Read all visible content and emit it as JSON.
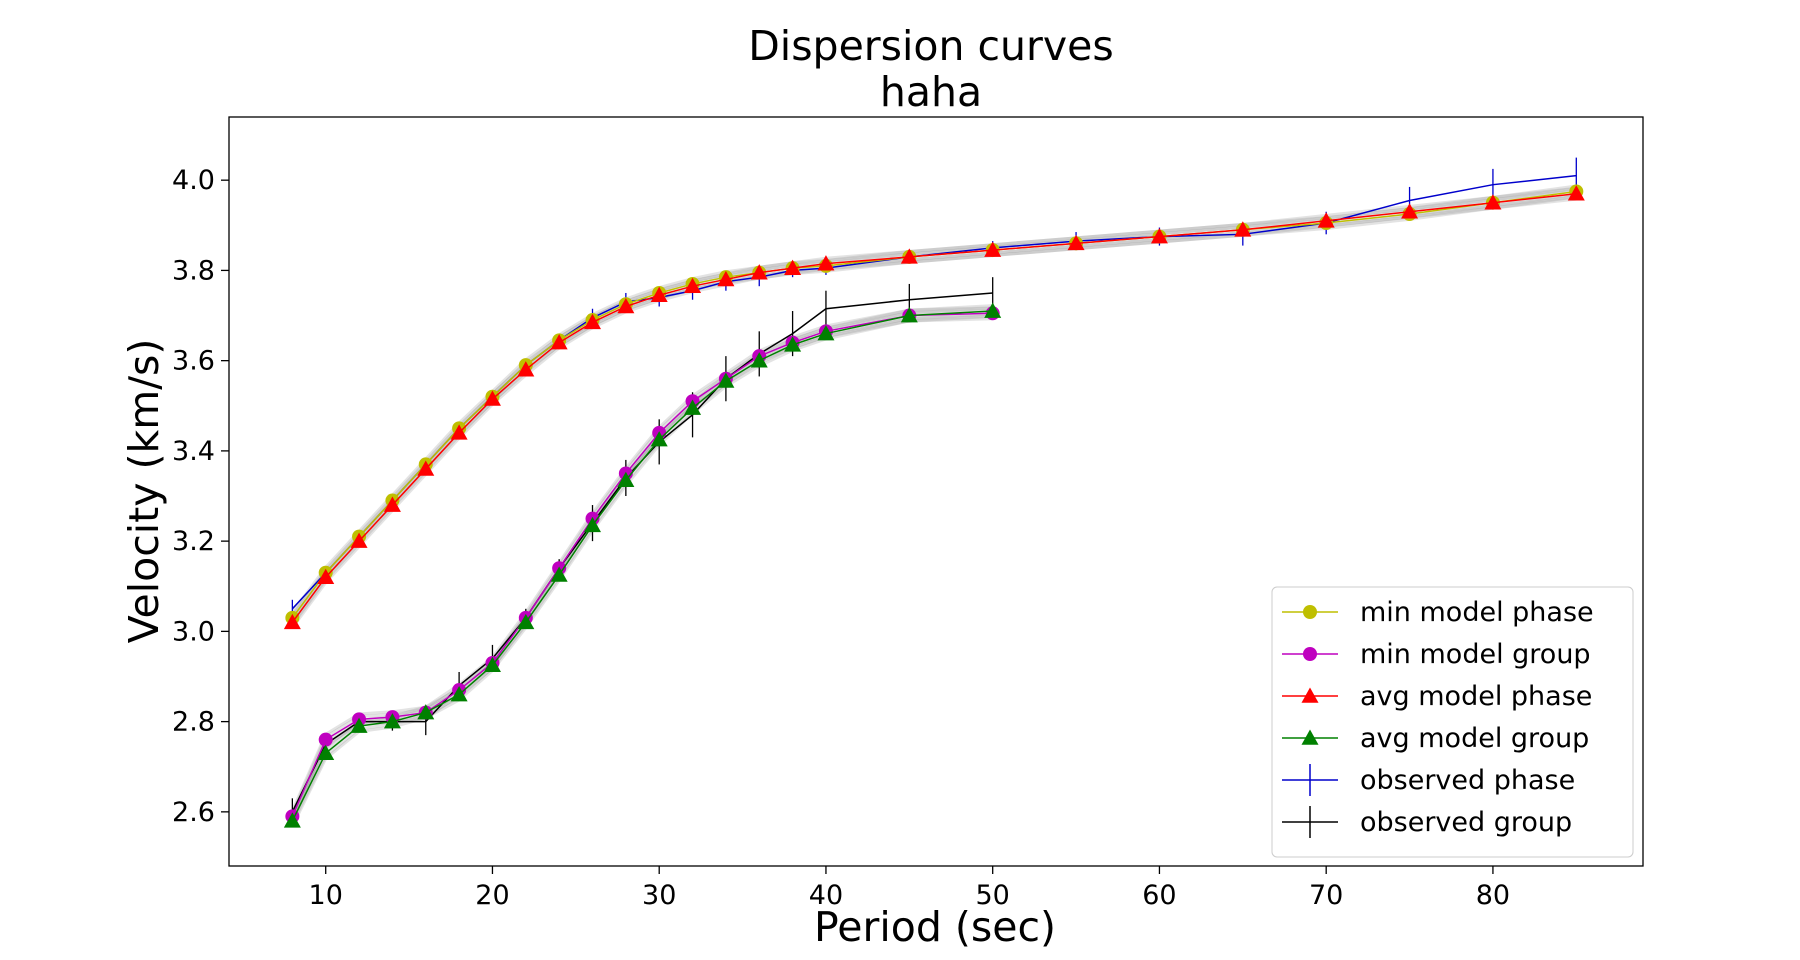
{
  "chart_data": {
    "type": "line",
    "title": "Dispersion curves",
    "subtitle": "haha",
    "xlabel": "Period (sec)",
    "ylabel": "Velocity (km/s)",
    "xlim": [
      4.2,
      89
    ],
    "ylim": [
      2.48,
      4.14
    ],
    "xticks": [
      10,
      20,
      30,
      40,
      50,
      60,
      70,
      80
    ],
    "yticks": [
      2.6,
      2.8,
      3.0,
      3.2,
      3.4,
      3.6,
      3.8,
      4.0
    ],
    "xtick_labels": [
      "10",
      "20",
      "30",
      "40",
      "50",
      "60",
      "70",
      "80"
    ],
    "ytick_labels": [
      "2.6",
      "2.8",
      "3.0",
      "3.2",
      "3.4",
      "3.6",
      "3.8",
      "4.0"
    ],
    "grid": false,
    "legend_position": "bottom-right",
    "series": [
      {
        "name": "min model phase",
        "color": "#bfbf00",
        "marker": "circle",
        "x": [
          8,
          10,
          12,
          14,
          16,
          18,
          20,
          22,
          24,
          26,
          28,
          30,
          32,
          34,
          36,
          38,
          40,
          45,
          50,
          55,
          60,
          65,
          70,
          75,
          80,
          85
        ],
        "y": [
          3.03,
          3.13,
          3.21,
          3.29,
          3.37,
          3.45,
          3.52,
          3.59,
          3.645,
          3.69,
          3.725,
          3.75,
          3.77,
          3.785,
          3.795,
          3.805,
          3.81,
          3.83,
          3.845,
          3.86,
          3.875,
          3.89,
          3.905,
          3.925,
          3.95,
          3.975
        ]
      },
      {
        "name": "min model group",
        "color": "#bf00bf",
        "marker": "circle",
        "x": [
          8,
          10,
          12,
          14,
          16,
          18,
          20,
          22,
          24,
          26,
          28,
          30,
          32,
          34,
          36,
          38,
          40,
          45,
          50
        ],
        "y": [
          2.59,
          2.76,
          2.805,
          2.81,
          2.82,
          2.87,
          2.93,
          3.03,
          3.14,
          3.25,
          3.35,
          3.44,
          3.51,
          3.56,
          3.61,
          3.64,
          3.665,
          3.7,
          3.705
        ]
      },
      {
        "name": "avg model phase",
        "color": "#ff0000",
        "marker": "triangle",
        "x": [
          8,
          10,
          12,
          14,
          16,
          18,
          20,
          22,
          24,
          26,
          28,
          30,
          32,
          34,
          36,
          38,
          40,
          45,
          50,
          55,
          60,
          65,
          70,
          75,
          80,
          85
        ],
        "y": [
          3.02,
          3.12,
          3.2,
          3.28,
          3.36,
          3.44,
          3.515,
          3.58,
          3.64,
          3.685,
          3.72,
          3.745,
          3.765,
          3.78,
          3.795,
          3.805,
          3.815,
          3.83,
          3.845,
          3.86,
          3.875,
          3.89,
          3.91,
          3.93,
          3.95,
          3.97
        ]
      },
      {
        "name": "avg model group",
        "color": "#008000",
        "marker": "triangle",
        "x": [
          8,
          10,
          12,
          14,
          16,
          18,
          20,
          22,
          24,
          26,
          28,
          30,
          32,
          34,
          36,
          38,
          40,
          45,
          50
        ],
        "y": [
          2.58,
          2.73,
          2.79,
          2.8,
          2.82,
          2.86,
          2.925,
          3.02,
          3.125,
          3.235,
          3.335,
          3.425,
          3.495,
          3.555,
          3.6,
          3.635,
          3.66,
          3.7,
          3.71
        ]
      },
      {
        "name": "observed phase",
        "color": "#0000cc",
        "marker": "errorbar",
        "x": [
          8,
          10,
          12,
          14,
          16,
          18,
          20,
          22,
          24,
          26,
          28,
          30,
          32,
          34,
          36,
          38,
          40,
          45,
          50,
          55,
          60,
          65,
          70,
          75,
          80,
          85
        ],
        "y": [
          3.05,
          3.13,
          3.21,
          3.29,
          3.37,
          3.45,
          3.52,
          3.59,
          3.645,
          3.695,
          3.73,
          3.74,
          3.755,
          3.775,
          3.785,
          3.8,
          3.805,
          3.83,
          3.85,
          3.865,
          3.875,
          3.88,
          3.905,
          3.955,
          3.99,
          4.01
        ],
        "err": [
          0.02,
          0.01,
          0.01,
          0.01,
          0.01,
          0.01,
          0.01,
          0.01,
          0.01,
          0.02,
          0.02,
          0.02,
          0.02,
          0.02,
          0.02,
          0.015,
          0.015,
          0.015,
          0.015,
          0.02,
          0.02,
          0.025,
          0.025,
          0.03,
          0.035,
          0.04
        ]
      },
      {
        "name": "observed group",
        "color": "#000000",
        "marker": "errorbar",
        "x": [
          8,
          10,
          12,
          14,
          16,
          18,
          20,
          22,
          24,
          26,
          28,
          30,
          32,
          34,
          36,
          38,
          40,
          45,
          50
        ],
        "y": [
          2.6,
          2.75,
          2.8,
          2.8,
          2.8,
          2.88,
          2.94,
          3.03,
          3.14,
          3.24,
          3.34,
          3.42,
          3.48,
          3.56,
          3.615,
          3.66,
          3.715,
          3.735,
          3.75
        ],
        "err": [
          0.03,
          0.02,
          0.02,
          0.02,
          0.03,
          0.03,
          0.03,
          0.02,
          0.02,
          0.04,
          0.04,
          0.05,
          0.05,
          0.05,
          0.05,
          0.05,
          0.04,
          0.035,
          0.035
        ]
      }
    ]
  }
}
